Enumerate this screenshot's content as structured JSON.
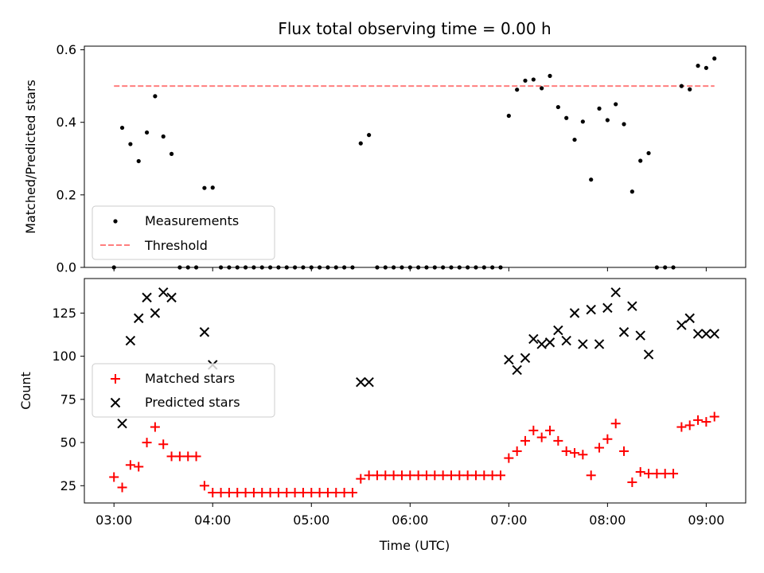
{
  "chart_data": [
    {
      "type": "scatter",
      "title": "Flux total observing time = 0.00 h",
      "xlabel": "",
      "ylabel": "Matched/Predicted stars",
      "ylim": [
        0,
        0.61
      ],
      "yticks": [
        "0.0",
        "0.2",
        "0.4",
        "0.6"
      ],
      "legend_position": "lower-left",
      "threshold": {
        "name": "Threshold",
        "value": 0.5,
        "x_range": [
          "03:00",
          "09:05"
        ],
        "color": "#ff7f7f",
        "style": "dashed"
      },
      "series": [
        {
          "name": "Measurements",
          "color": "#000000",
          "points": [
            [
              "03:00",
              0
            ],
            [
              "03:05",
              0.385
            ],
            [
              "03:10",
              0.34
            ],
            [
              "03:15",
              0.293
            ],
            [
              "03:20",
              0.372
            ],
            [
              "03:25",
              0.472
            ],
            [
              "03:30",
              0.361
            ],
            [
              "03:35",
              0.313
            ],
            [
              "03:40",
              0
            ],
            [
              "03:45",
              0
            ],
            [
              "03:50",
              0
            ],
            [
              "03:55",
              0.219
            ],
            [
              "04:00",
              0.22
            ],
            [
              "04:05",
              0
            ],
            [
              "04:10",
              0
            ],
            [
              "04:15",
              0
            ],
            [
              "04:20",
              0
            ],
            [
              "04:25",
              0
            ],
            [
              "04:30",
              0
            ],
            [
              "04:35",
              0
            ],
            [
              "04:40",
              0
            ],
            [
              "04:45",
              0
            ],
            [
              "04:50",
              0
            ],
            [
              "04:55",
              0
            ],
            [
              "05:00",
              0
            ],
            [
              "05:05",
              0
            ],
            [
              "05:10",
              0
            ],
            [
              "05:15",
              0
            ],
            [
              "05:20",
              0
            ],
            [
              "05:25",
              0
            ],
            [
              "05:30",
              0.342
            ],
            [
              "05:35",
              0.365
            ],
            [
              "05:40",
              0
            ],
            [
              "05:45",
              0
            ],
            [
              "05:50",
              0
            ],
            [
              "05:55",
              0
            ],
            [
              "06:00",
              0
            ],
            [
              "06:05",
              0
            ],
            [
              "06:10",
              0
            ],
            [
              "06:15",
              0
            ],
            [
              "06:20",
              0
            ],
            [
              "06:25",
              0
            ],
            [
              "06:30",
              0
            ],
            [
              "06:35",
              0
            ],
            [
              "06:40",
              0
            ],
            [
              "06:45",
              0
            ],
            [
              "06:50",
              0
            ],
            [
              "06:55",
              0
            ],
            [
              "07:00",
              0.418
            ],
            [
              "07:05",
              0.49
            ],
            [
              "07:10",
              0.515
            ],
            [
              "07:15",
              0.518
            ],
            [
              "07:20",
              0.494
            ],
            [
              "07:25",
              0.528
            ],
            [
              "07:30",
              0.442
            ],
            [
              "07:35",
              0.412
            ],
            [
              "07:40",
              0.352
            ],
            [
              "07:45",
              0.402
            ],
            [
              "07:50",
              0.242
            ],
            [
              "07:55",
              0.438
            ],
            [
              "08:00",
              0.406
            ],
            [
              "08:05",
              0.45
            ],
            [
              "08:10",
              0.395
            ],
            [
              "08:15",
              0.209
            ],
            [
              "08:20",
              0.294
            ],
            [
              "08:25",
              0.315
            ],
            [
              "08:30",
              0
            ],
            [
              "08:35",
              0
            ],
            [
              "08:40",
              0
            ],
            [
              "08:45",
              0.5
            ],
            [
              "08:50",
              0.491
            ],
            [
              "08:55",
              0.556
            ],
            [
              "09:00",
              0.55
            ],
            [
              "09:05",
              0.576
            ]
          ]
        }
      ]
    },
    {
      "type": "scatter",
      "title": "",
      "xlabel": "Time (UTC)",
      "ylabel": "Count",
      "ylim": [
        15,
        145
      ],
      "yticks": [
        "25",
        "50",
        "75",
        "100",
        "125"
      ],
      "xticks": [
        "03:00",
        "04:00",
        "05:00",
        "06:00",
        "07:00",
        "08:00",
        "09:00"
      ],
      "xlim": [
        "02:42",
        "09:24"
      ],
      "legend_position": "center-left",
      "series": [
        {
          "name": "Matched stars",
          "color": "#ff0000",
          "marker": "plus",
          "points": [
            [
              "03:00",
              30
            ],
            [
              "03:05",
              24
            ],
            [
              "03:10",
              37
            ],
            [
              "03:15",
              36
            ],
            [
              "03:20",
              50
            ],
            [
              "03:25",
              59
            ],
            [
              "03:30",
              49
            ],
            [
              "03:35",
              42
            ],
            [
              "03:40",
              42
            ],
            [
              "03:45",
              42
            ],
            [
              "03:50",
              42
            ],
            [
              "03:55",
              25
            ],
            [
              "04:00",
              21
            ],
            [
              "04:05",
              21
            ],
            [
              "04:10",
              21
            ],
            [
              "04:15",
              21
            ],
            [
              "04:20",
              21
            ],
            [
              "04:25",
              21
            ],
            [
              "04:30",
              21
            ],
            [
              "04:35",
              21
            ],
            [
              "04:40",
              21
            ],
            [
              "04:45",
              21
            ],
            [
              "04:50",
              21
            ],
            [
              "04:55",
              21
            ],
            [
              "05:00",
              21
            ],
            [
              "05:05",
              21
            ],
            [
              "05:10",
              21
            ],
            [
              "05:15",
              21
            ],
            [
              "05:20",
              21
            ],
            [
              "05:25",
              21
            ],
            [
              "05:30",
              29
            ],
            [
              "05:35",
              31
            ],
            [
              "05:40",
              31
            ],
            [
              "05:45",
              31
            ],
            [
              "05:50",
              31
            ],
            [
              "05:55",
              31
            ],
            [
              "06:00",
              31
            ],
            [
              "06:05",
              31
            ],
            [
              "06:10",
              31
            ],
            [
              "06:15",
              31
            ],
            [
              "06:20",
              31
            ],
            [
              "06:25",
              31
            ],
            [
              "06:30",
              31
            ],
            [
              "06:35",
              31
            ],
            [
              "06:40",
              31
            ],
            [
              "06:45",
              31
            ],
            [
              "06:50",
              31
            ],
            [
              "06:55",
              31
            ],
            [
              "07:00",
              41
            ],
            [
              "07:05",
              45
            ],
            [
              "07:10",
              51
            ],
            [
              "07:15",
              57
            ],
            [
              "07:20",
              53
            ],
            [
              "07:25",
              57
            ],
            [
              "07:30",
              51
            ],
            [
              "07:35",
              45
            ],
            [
              "07:40",
              44
            ],
            [
              "07:45",
              43
            ],
            [
              "07:50",
              31
            ],
            [
              "07:55",
              47
            ],
            [
              "08:00",
              52
            ],
            [
              "08:05",
              61
            ],
            [
              "08:10",
              45
            ],
            [
              "08:15",
              27
            ],
            [
              "08:20",
              33
            ],
            [
              "08:25",
              32
            ],
            [
              "08:30",
              32
            ],
            [
              "08:35",
              32
            ],
            [
              "08:40",
              32
            ],
            [
              "08:45",
              59
            ],
            [
              "08:50",
              60
            ],
            [
              "08:55",
              63
            ],
            [
              "09:00",
              62
            ],
            [
              "09:05",
              65
            ]
          ]
        },
        {
          "name": "Predicted stars",
          "color": "#000000",
          "marker": "x",
          "points": [
            [
              "03:05",
              61
            ],
            [
              "03:10",
              109
            ],
            [
              "03:15",
              122
            ],
            [
              "03:20",
              134
            ],
            [
              "03:25",
              125
            ],
            [
              "03:30",
              137
            ],
            [
              "03:35",
              134
            ],
            [
              "03:55",
              114
            ],
            [
              "04:00",
              95
            ],
            [
              "05:30",
              85
            ],
            [
              "05:35",
              85
            ],
            [
              "07:00",
              98
            ],
            [
              "07:05",
              92
            ],
            [
              "07:10",
              99
            ],
            [
              "07:15",
              110
            ],
            [
              "07:20",
              107
            ],
            [
              "07:25",
              108
            ],
            [
              "07:30",
              115
            ],
            [
              "07:35",
              109
            ],
            [
              "07:40",
              125
            ],
            [
              "07:45",
              107
            ],
            [
              "07:50",
              127
            ],
            [
              "07:55",
              107
            ],
            [
              "08:00",
              128
            ],
            [
              "08:05",
              137
            ],
            [
              "08:10",
              114
            ],
            [
              "08:15",
              129
            ],
            [
              "08:20",
              112
            ],
            [
              "08:25",
              101
            ],
            [
              "08:45",
              118
            ],
            [
              "08:50",
              122
            ],
            [
              "08:55",
              113
            ],
            [
              "09:00",
              113
            ],
            [
              "09:05",
              113
            ]
          ]
        }
      ]
    }
  ]
}
